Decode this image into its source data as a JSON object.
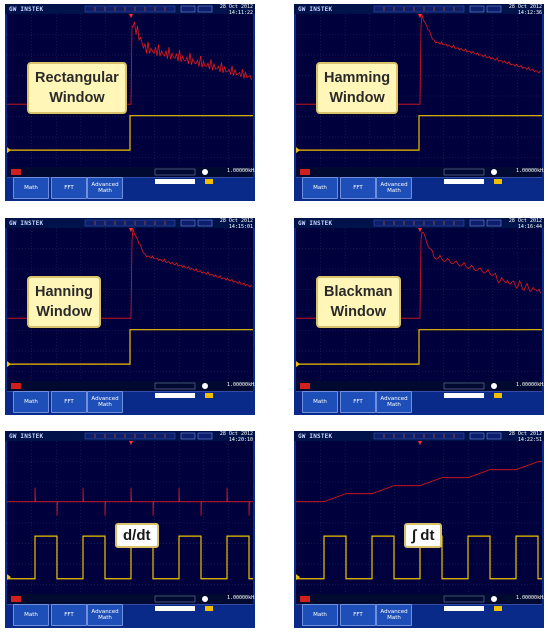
{
  "panels": [
    {
      "id": "p1",
      "brand": "GW INSTEK",
      "date": "28 Oct 2012",
      "time": "14:11:22",
      "label": "Rectangular\nWindow",
      "kind": "fft-rect",
      "status_right": "1.00000kHz",
      "menu": [
        "Math",
        "FFT",
        "Advanced\nMath"
      ]
    },
    {
      "id": "p2",
      "brand": "GW INSTEK",
      "date": "28 Oct 2012",
      "time": "14:12:36",
      "label": "Hamming\nWindow",
      "kind": "fft-smooth",
      "status_right": "1.00000kHz",
      "menu": [
        "Math",
        "FFT",
        "Advanced\nMath"
      ]
    },
    {
      "id": "p3",
      "brand": "GW INSTEK",
      "date": "28 Oct 2012",
      "time": "14:15:01",
      "label": "Hanning\nWindow",
      "kind": "fft-smooth",
      "status_right": "1.00000kHz",
      "menu": [
        "Math",
        "FFT",
        "Advanced\nMath"
      ]
    },
    {
      "id": "p4",
      "brand": "GW INSTEK",
      "date": "28 Oct 2012",
      "time": "14:16:44",
      "label": "Blackman\nWindow",
      "kind": "fft-noisy",
      "status_right": "1.00000kHz",
      "menu": [
        "Math",
        "FFT",
        "Advanced\nMath"
      ]
    },
    {
      "id": "p5",
      "brand": "GW INSTEK",
      "date": "28 Oct 2012",
      "time": "14:20:10",
      "label": "d/dt",
      "kind": "diff",
      "status_right": "1.00000kHz",
      "menu": [
        "Math",
        "FFT",
        "Advanced\nMath"
      ]
    },
    {
      "id": "p6",
      "brand": "GW INSTEK",
      "date": "28 Oct 2012",
      "time": "14:22:51",
      "label": "∫ dt",
      "kind": "integ",
      "status_right": "1.00000kHz",
      "menu": [
        "Math",
        "FFT",
        "Advanced\nMath"
      ]
    }
  ],
  "colors": {
    "screen": "#00003c",
    "frame": "#0a2a8a",
    "grid": "#2b3a7a",
    "ch1": "#f0c000",
    "math": "#e01818",
    "menu": "#1e4fb8"
  }
}
